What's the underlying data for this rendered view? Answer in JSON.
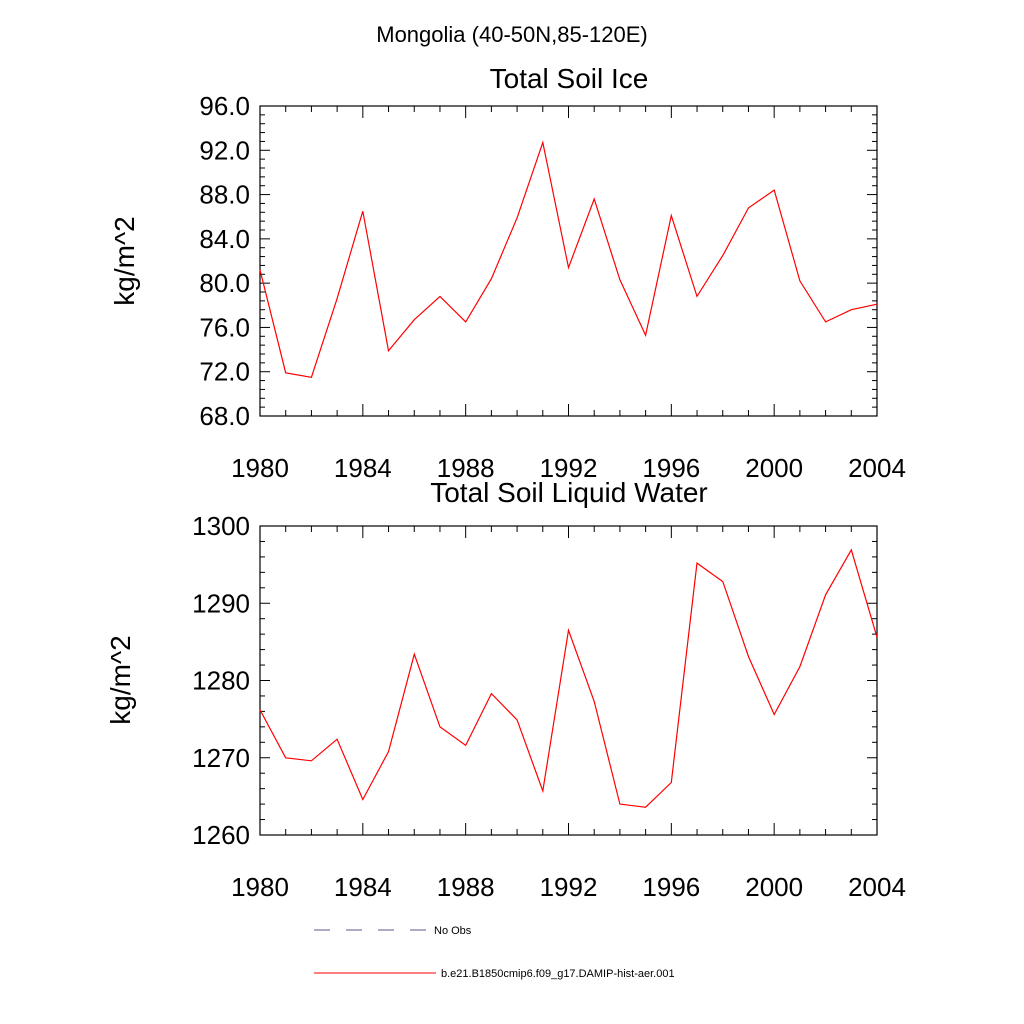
{
  "suptitle": "Mongolia (40-50N,85-120E)",
  "chart_data": [
    {
      "type": "line",
      "title": "Total Soil Ice",
      "ylabel": "kg/m^2",
      "xlim": [
        1980,
        2004
      ],
      "ylim": [
        68,
        96
      ],
      "yticks": [
        "68.0",
        "72.0",
        "76.0",
        "80.0",
        "84.0",
        "88.0",
        "92.0",
        "96.0"
      ],
      "xticks": [
        "1980",
        "1984",
        "1988",
        "1992",
        "1996",
        "2000",
        "2004"
      ],
      "x": [
        1980,
        1981,
        1982,
        1983,
        1984,
        1985,
        1986,
        1987,
        1988,
        1989,
        1990,
        1991,
        1992,
        1993,
        1994,
        1995,
        1996,
        1997,
        1998,
        1999,
        2000,
        2001,
        2002,
        2003,
        2004
      ],
      "series": [
        {
          "values": [
            81.2,
            71.9,
            71.5,
            78.6,
            86.5,
            73.9,
            76.7,
            78.8,
            76.5,
            80.4,
            85.9,
            92.7,
            81.4,
            87.6,
            80.3,
            75.3,
            86.1,
            78.8,
            82.5,
            86.8,
            88.4,
            80.2,
            76.5,
            77.6,
            78.1
          ],
          "color": "#ff0000"
        }
      ]
    },
    {
      "type": "line",
      "title": "Total Soil Liquid Water",
      "ylabel": "kg/m^2",
      "xlim": [
        1980,
        2004
      ],
      "ylim": [
        1260,
        1300
      ],
      "yticks": [
        "1260",
        "1270",
        "1280",
        "1290",
        "1300"
      ],
      "xticks": [
        "1980",
        "1984",
        "1988",
        "1992",
        "1996",
        "2000",
        "2004"
      ],
      "x": [
        1980,
        1981,
        1982,
        1983,
        1984,
        1985,
        1986,
        1987,
        1988,
        1989,
        1990,
        1991,
        1992,
        1993,
        1994,
        1995,
        1996,
        1997,
        1998,
        1999,
        2000,
        2001,
        2002,
        2003,
        2004
      ],
      "series": [
        {
          "values": [
            1276.2,
            1270.0,
            1269.6,
            1272.4,
            1264.6,
            1270.8,
            1283.4,
            1274.0,
            1271.6,
            1278.3,
            1274.9,
            1265.7,
            1286.5,
            1277.3,
            1264.0,
            1263.6,
            1266.8,
            1295.2,
            1292.8,
            1283.1,
            1275.6,
            1281.8,
            1291.1,
            1296.9,
            1285.6
          ],
          "color": "#ff0000"
        }
      ]
    }
  ],
  "legend": {
    "items": [
      {
        "label": "No Obs",
        "style": "dashed",
        "color": "#5a5a8a"
      },
      {
        "label": "b.e21.B1850cmip6.f09_g17.DAMIP-hist-aer.001",
        "style": "solid",
        "color": "#ff0000"
      }
    ]
  }
}
